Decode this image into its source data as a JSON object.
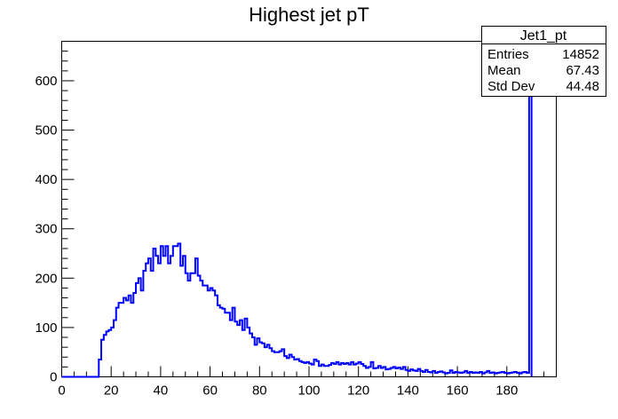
{
  "chart_data": {
    "type": "histogram",
    "title": "Highest jet pT",
    "xlabel": "",
    "ylabel": "",
    "xlim": [
      0,
      200
    ],
    "ylim": [
      0,
      680
    ],
    "xticks": [
      0,
      20,
      40,
      60,
      80,
      100,
      120,
      140,
      160,
      180
    ],
    "yticks": [
      0,
      100,
      200,
      300,
      400,
      500,
      600
    ],
    "bin_width": 1,
    "bin_start": 0,
    "color": "#0000ff",
    "grid": false,
    "values": [
      0,
      0,
      0,
      0,
      0,
      0,
      0,
      0,
      0,
      0,
      0,
      0,
      0,
      0,
      0,
      35,
      75,
      85,
      92,
      95,
      100,
      115,
      140,
      150,
      150,
      160,
      155,
      165,
      150,
      170,
      190,
      200,
      175,
      215,
      230,
      240,
      215,
      260,
      245,
      230,
      265,
      245,
      265,
      230,
      245,
      265,
      265,
      270,
      225,
      245,
      210,
      195,
      210,
      210,
      240,
      205,
      195,
      185,
      185,
      175,
      180,
      175,
      165,
      145,
      140,
      138,
      130,
      130,
      115,
      140,
      112,
      105,
      115,
      95,
      118,
      100,
      88,
      80,
      65,
      78,
      70,
      68,
      60,
      65,
      58,
      52,
      50,
      50,
      52,
      56,
      42,
      38,
      45,
      40,
      35,
      36,
      32,
      30,
      28,
      30,
      27,
      25,
      35,
      32,
      22,
      25,
      22,
      22,
      24,
      28,
      26,
      30,
      25,
      28,
      26,
      28,
      25,
      30,
      25,
      27,
      30,
      26,
      22,
      18,
      20,
      30,
      17,
      18,
      22,
      18,
      20,
      15,
      16,
      18,
      20,
      17,
      19,
      16,
      20,
      14,
      12,
      15,
      13,
      12,
      16,
      12,
      10,
      14,
      10,
      9,
      12,
      8,
      10,
      11,
      9,
      7,
      8,
      13,
      8,
      10,
      9,
      8,
      9,
      12,
      8,
      10,
      8,
      9,
      8,
      10,
      7,
      9,
      12,
      8,
      9,
      7,
      8,
      9,
      10,
      8,
      7,
      8,
      9,
      10,
      8,
      7,
      9,
      10,
      8,
      680
    ]
  },
  "stats_box": {
    "name": "Jet1_pt",
    "rows": [
      {
        "label": "Entries",
        "value": "14852"
      },
      {
        "label": "Mean",
        "value": "67.43"
      },
      {
        "label": "Std Dev",
        "value": "44.48"
      }
    ]
  }
}
